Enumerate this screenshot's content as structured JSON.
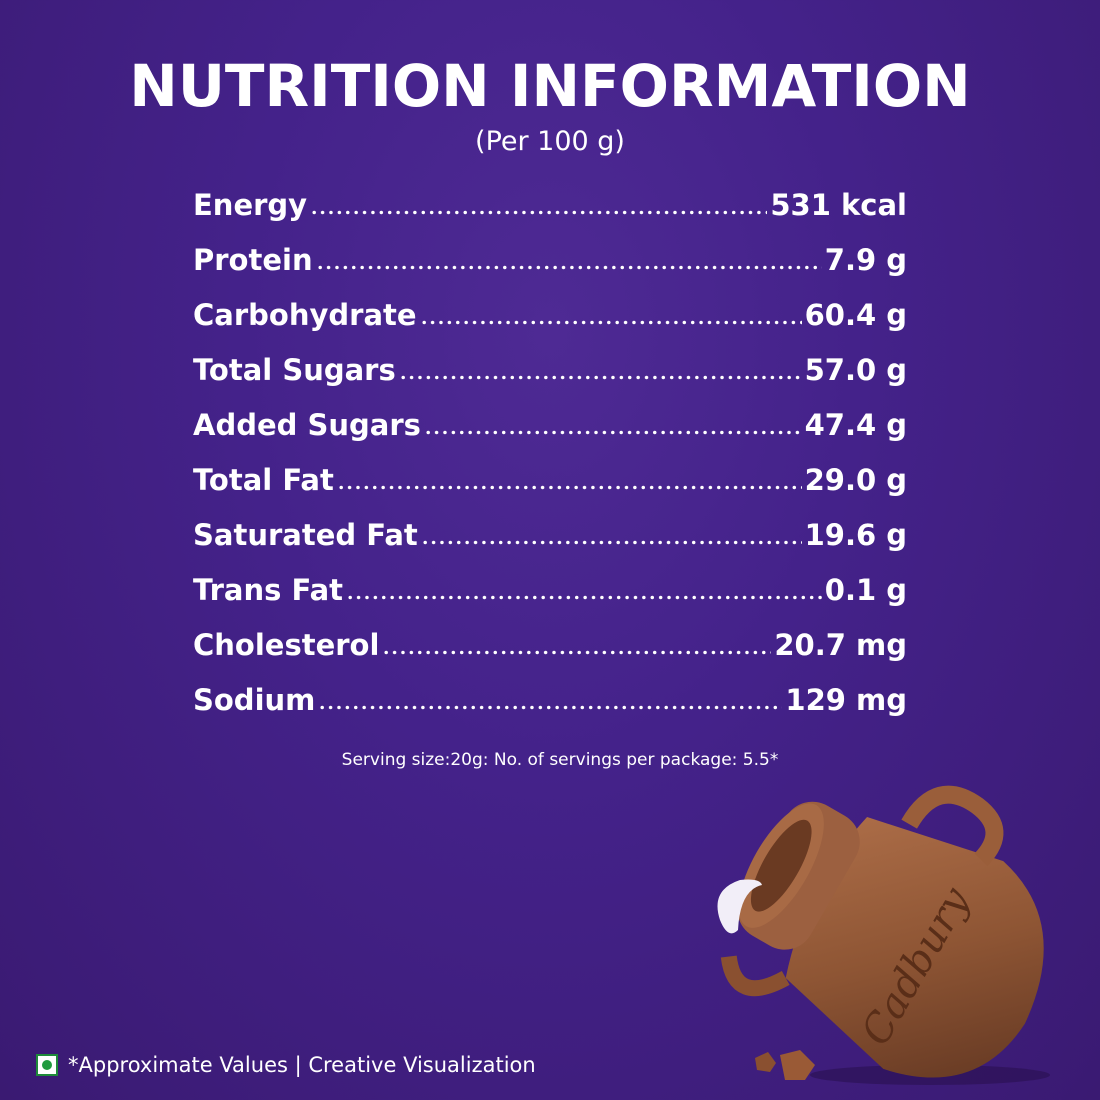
{
  "header": {
    "title": "NUTRITION INFORMATION",
    "subtitle": "(Per 100 g)"
  },
  "nutrients": [
    {
      "label": "Energy",
      "value": "531 kcal"
    },
    {
      "label": "Protein",
      "value": "7.9 g"
    },
    {
      "label": "Carbohydrate",
      "value": "60.4 g"
    },
    {
      "label": "Total Sugars",
      "value": "57.0 g"
    },
    {
      "label": "Added Sugars",
      "value": "47.4 g"
    },
    {
      "label": "Total Fat",
      "value": "29.0 g"
    },
    {
      "label": "Saturated Fat",
      "value": "19.6 g"
    },
    {
      "label": "Trans Fat",
      "value": "0.1 g"
    },
    {
      "label": "Cholesterol",
      "value": " 20.7 mg"
    },
    {
      "label": "Sodium",
      "value": "129 mg"
    }
  ],
  "serving_note": "Serving size:20g: No. of servings per package: 5.5*",
  "footer": {
    "note": "*Approximate Values | Creative Visualization",
    "icon": "vegetarian-mark-icon"
  },
  "image": {
    "brand_logo_text": "Cadbury",
    "subject": "chocolate jug"
  },
  "colors": {
    "background": "#44228a",
    "text": "#ffffff",
    "veg_mark": "#1f9a3e",
    "chocolate": "#8a5030"
  }
}
